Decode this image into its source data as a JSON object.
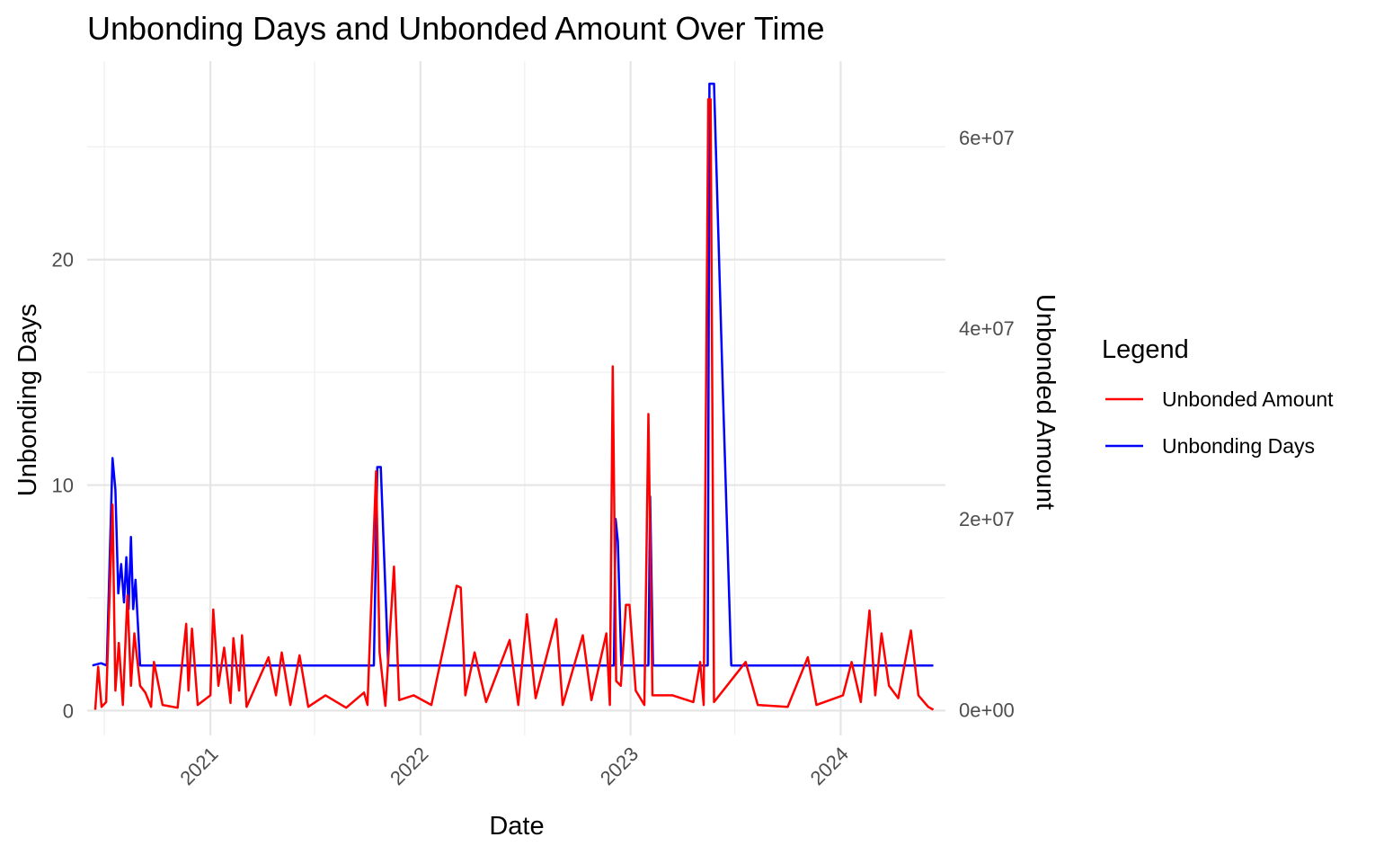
{
  "chart_data": {
    "type": "line",
    "title": "Unbonding Days and Unbonded Amount Over Time",
    "xlabel": "Date",
    "ylabel": "Unbonding Days",
    "y2label": "Unbonded Amount",
    "xlim": [
      "2020-06-01",
      "2024-07-01"
    ],
    "ylim": [
      -1.1,
      28.8
    ],
    "y2lim": [
      -2700000,
      68000000
    ],
    "x_ticks": [
      "2021",
      "2022",
      "2023",
      "2024"
    ],
    "y_ticks": [
      0,
      10,
      20
    ],
    "y2_ticks": [
      "0e+00",
      "2e+07",
      "4e+07",
      "6e+07"
    ],
    "y2_tick_values": [
      0,
      20000000,
      40000000,
      60000000
    ],
    "grid": true,
    "legend": {
      "title": "Legend",
      "position": "right"
    },
    "series": [
      {
        "name": "Unbonded Amount",
        "color": "#ff0000",
        "axis": "right",
        "points": [
          [
            "2020-06-15",
            0
          ],
          [
            "2020-06-20",
            4500000
          ],
          [
            "2020-06-26",
            300000
          ],
          [
            "2020-07-04",
            800000
          ],
          [
            "2020-07-15",
            21500000
          ],
          [
            "2020-07-20",
            2000000
          ],
          [
            "2020-07-26",
            7000000
          ],
          [
            "2020-08-02",
            500000
          ],
          [
            "2020-08-10",
            12000000
          ],
          [
            "2020-08-16",
            2500000
          ],
          [
            "2020-08-22",
            8000000
          ],
          [
            "2020-09-01",
            2500000
          ],
          [
            "2020-09-10",
            1800000
          ],
          [
            "2020-09-20",
            300000
          ],
          [
            "2020-09-25",
            5000000
          ],
          [
            "2020-10-10",
            500000
          ],
          [
            "2020-11-05",
            200000
          ],
          [
            "2020-11-20",
            9000000
          ],
          [
            "2020-11-24",
            2000000
          ],
          [
            "2020-11-30",
            8500000
          ],
          [
            "2020-12-10",
            500000
          ],
          [
            "2021-01-01",
            1500000
          ],
          [
            "2021-01-06",
            10500000
          ],
          [
            "2021-01-15",
            2500000
          ],
          [
            "2021-01-25",
            6500000
          ],
          [
            "2021-02-05",
            700000
          ],
          [
            "2021-02-10",
            7500000
          ],
          [
            "2021-02-20",
            2000000
          ],
          [
            "2021-02-25",
            7800000
          ],
          [
            "2021-03-05",
            300000
          ],
          [
            "2021-04-12",
            5500000
          ],
          [
            "2021-04-25",
            1500000
          ],
          [
            "2021-05-05",
            6000000
          ],
          [
            "2021-05-20",
            500000
          ],
          [
            "2021-06-05",
            5700000
          ],
          [
            "2021-06-20",
            300000
          ],
          [
            "2021-07-20",
            1500000
          ],
          [
            "2021-08-25",
            200000
          ],
          [
            "2021-09-25",
            1800000
          ],
          [
            "2021-10-01",
            500000
          ],
          [
            "2021-10-16",
            25000000
          ],
          [
            "2021-10-22",
            6000000
          ],
          [
            "2021-11-01",
            400000
          ],
          [
            "2021-11-16",
            15000000
          ],
          [
            "2021-11-25",
            1000000
          ],
          [
            "2021-12-20",
            1500000
          ],
          [
            "2022-01-20",
            500000
          ],
          [
            "2022-03-05",
            13000000
          ],
          [
            "2022-03-12",
            12800000
          ],
          [
            "2022-03-20",
            1500000
          ],
          [
            "2022-04-05",
            6000000
          ],
          [
            "2022-04-25",
            800000
          ],
          [
            "2022-06-05",
            7300000
          ],
          [
            "2022-06-20",
            500000
          ],
          [
            "2022-07-05",
            10000000
          ],
          [
            "2022-07-20",
            1200000
          ],
          [
            "2022-08-25",
            9500000
          ],
          [
            "2022-09-05",
            500000
          ],
          [
            "2022-10-10",
            7800000
          ],
          [
            "2022-10-25",
            1000000
          ],
          [
            "2022-11-20",
            8000000
          ],
          [
            "2022-11-26",
            500000
          ],
          [
            "2022-12-01",
            36000000
          ],
          [
            "2022-12-07",
            3000000
          ],
          [
            "2022-12-15",
            2500000
          ],
          [
            "2022-12-24",
            11000000
          ],
          [
            "2022-12-30",
            11000000
          ],
          [
            "2023-01-10",
            2000000
          ],
          [
            "2023-01-25",
            500000
          ],
          [
            "2023-02-01",
            31000000
          ],
          [
            "2023-02-08",
            1500000
          ],
          [
            "2023-03-15",
            1500000
          ],
          [
            "2023-04-20",
            800000
          ],
          [
            "2023-05-02",
            5000000
          ],
          [
            "2023-05-08",
            500000
          ],
          [
            "2023-05-16",
            64000000
          ],
          [
            "2023-05-20",
            64000000
          ],
          [
            "2023-05-26",
            800000
          ],
          [
            "2023-07-20",
            5000000
          ],
          [
            "2023-08-10",
            500000
          ],
          [
            "2023-10-01",
            300000
          ],
          [
            "2023-11-05",
            5500000
          ],
          [
            "2023-11-20",
            500000
          ],
          [
            "2024-01-05",
            1500000
          ],
          [
            "2024-01-20",
            5000000
          ],
          [
            "2024-02-05",
            800000
          ],
          [
            "2024-02-20",
            10400000
          ],
          [
            "2024-03-01",
            1500000
          ],
          [
            "2024-03-12",
            8000000
          ],
          [
            "2024-03-25",
            2500000
          ],
          [
            "2024-04-10",
            1200000
          ],
          [
            "2024-05-02",
            8300000
          ],
          [
            "2024-05-15",
            1500000
          ],
          [
            "2024-06-01",
            300000
          ],
          [
            "2024-06-10",
            0
          ]
        ]
      },
      {
        "name": "Unbonding Days",
        "color": "#0000ff",
        "axis": "left",
        "points": [
          [
            "2020-06-10",
            2
          ],
          [
            "2020-06-25",
            2.1
          ],
          [
            "2020-07-05",
            2
          ],
          [
            "2020-07-15",
            11.2
          ],
          [
            "2020-07-20",
            9.8
          ],
          [
            "2020-07-25",
            5.2
          ],
          [
            "2020-07-30",
            6.5
          ],
          [
            "2020-08-04",
            4.8
          ],
          [
            "2020-08-08",
            6.8
          ],
          [
            "2020-08-12",
            4.5
          ],
          [
            "2020-08-16",
            7.7
          ],
          [
            "2020-08-20",
            4.5
          ],
          [
            "2020-08-24",
            5.8
          ],
          [
            "2020-09-01",
            2
          ],
          [
            "2021-10-12",
            2
          ],
          [
            "2021-10-18",
            10.8
          ],
          [
            "2021-10-24",
            10.8
          ],
          [
            "2021-11-06",
            2
          ],
          [
            "2022-12-03",
            2
          ],
          [
            "2022-12-06",
            8.5
          ],
          [
            "2022-12-10",
            7.5
          ],
          [
            "2022-12-16",
            2
          ],
          [
            "2023-02-01",
            2
          ],
          [
            "2023-02-04",
            9.5
          ],
          [
            "2023-02-09",
            2
          ],
          [
            "2023-05-15",
            2
          ],
          [
            "2023-05-18",
            27.8
          ],
          [
            "2023-05-26",
            27.8
          ],
          [
            "2023-06-10",
            14.5
          ],
          [
            "2023-06-25",
            2
          ],
          [
            "2024-06-10",
            2
          ]
        ]
      }
    ]
  }
}
